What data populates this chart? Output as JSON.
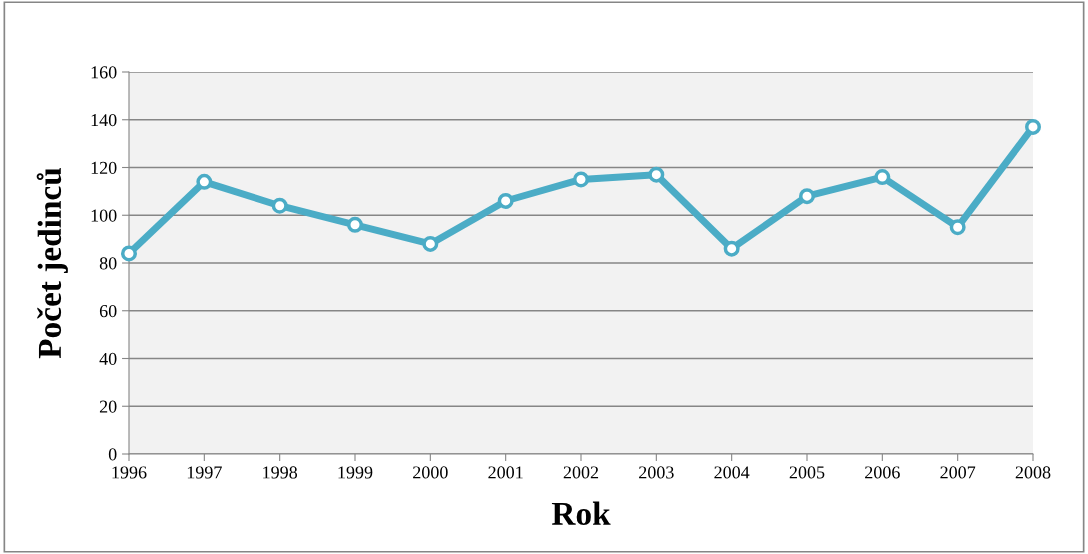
{
  "chart_data": {
    "type": "line",
    "xlabel": "Rok",
    "ylabel": "Počet jedinců",
    "categories": [
      "1996",
      "1997",
      "1998",
      "1999",
      "2000",
      "2001",
      "2002",
      "2003",
      "2004",
      "2005",
      "2006",
      "2007",
      "2008"
    ],
    "series": [
      {
        "color": "#4bacc6",
        "values": [
          84,
          114,
          104,
          96,
          88,
          106,
          115,
          117,
          86,
          108,
          116,
          95,
          137
        ]
      }
    ],
    "ylim": [
      0,
      160
    ],
    "yticks": [
      0,
      20,
      40,
      60,
      80,
      100,
      120,
      140,
      160
    ],
    "grid": "y",
    "marker": "circle",
    "line_style": "solid"
  }
}
